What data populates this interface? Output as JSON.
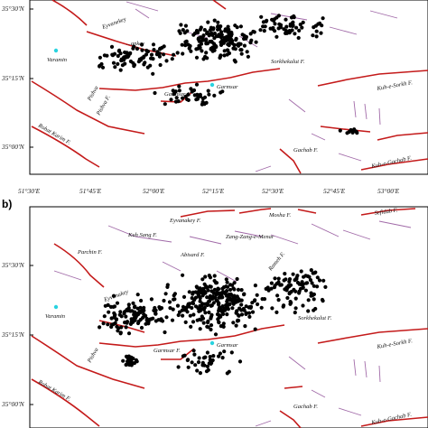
{
  "panels": [
    {
      "label": "",
      "lat_labels": [
        "35°30'N",
        "35°15'N",
        "35°00'N"
      ],
      "faults": [
        "Eyvanekey",
        "...ankey",
        "Varamin",
        "Garmsar F.",
        "Garmsar",
        "Sorkhekalut F.",
        "Kuh-e-Sorkh F.",
        "Pishva",
        "Pishva F.",
        "Robat Karim F.",
        "Gachab F.",
        "Kuh-e-Gachab F."
      ]
    },
    {
      "label": "b)",
      "lat_labels": [
        "35°30'N",
        "35°15'N",
        "35°00'N"
      ],
      "faults": [
        "Eyvanakey F.",
        "Mosha F.",
        "Zang-Zang-e-Menar",
        "Sefidab F.",
        "Kuh Sang F.",
        "Abisard F.",
        "Parchin F.",
        "Rameh F.",
        "Eyvanakey",
        "Varamin",
        "Garmsar F.",
        "Garmsar",
        "Sorkhekalut F.",
        "Kuh-e-Sorkh F.",
        "Pishva",
        "Robat Karim F.",
        "Gachab F.",
        "Kuh-e-Gachab F."
      ]
    }
  ],
  "lon_labels": [
    "51°30'E",
    "51°45'E",
    "52°00'E",
    "52°15'E",
    "52°30'E",
    "52°45'E",
    "53°00'E"
  ],
  "colors": {
    "fault": "#c41a1a",
    "lineament": "#a16aa8",
    "epicenter": "#000000",
    "city": "#29d3e0"
  }
}
